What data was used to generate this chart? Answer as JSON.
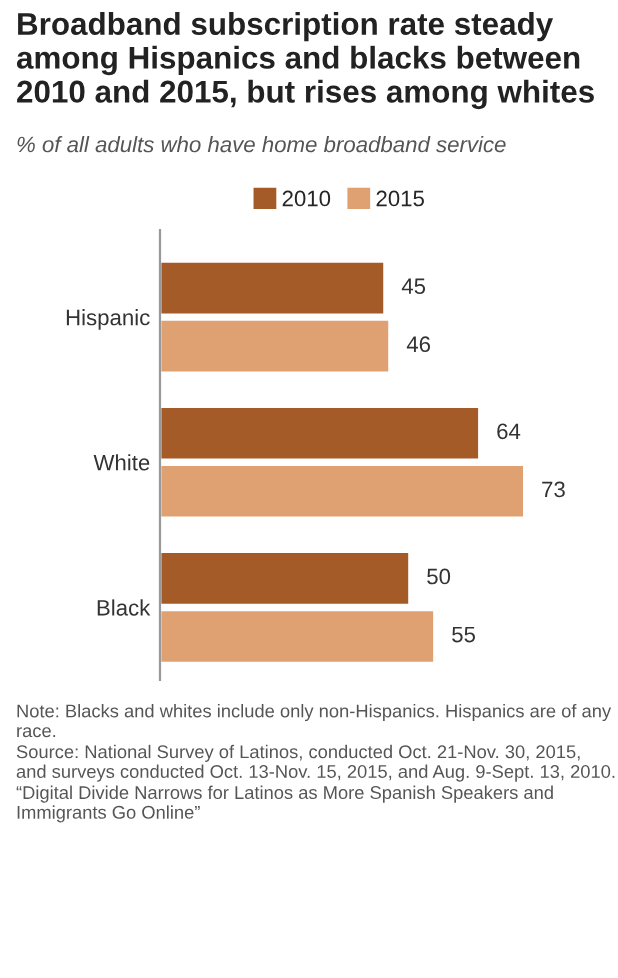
{
  "chart_data": {
    "type": "bar",
    "orientation": "horizontal",
    "title": "Broadband subscription rate steady among Hispanics and blacks between 2010 and 2015, but rises among whites",
    "subtitle": "% of all adults who have home broadband service",
    "categories": [
      "Hispanic",
      "White",
      "Black"
    ],
    "series": [
      {
        "name": "2010",
        "color": "#a55b27",
        "values": [
          45,
          64,
          50
        ]
      },
      {
        "name": "2015",
        "color": "#e0a172",
        "values": [
          46,
          73,
          55
        ]
      }
    ],
    "data_labels": true,
    "legend": "top",
    "grid": false,
    "annotations": [
      "Note: Blacks and whites include only non-Hispanics. Hispanics are of any race.",
      "Source: National Survey of Latinos, conducted Oct. 21-Nov. 30, 2015, and surveys conducted Oct. 13-Nov. 15, 2015, and Aug. 9-Sept. 13, 2010.",
      "“Digital Divide Narrows for Latinos as More Spanish Speakers and Immigrants Go Online”"
    ]
  }
}
